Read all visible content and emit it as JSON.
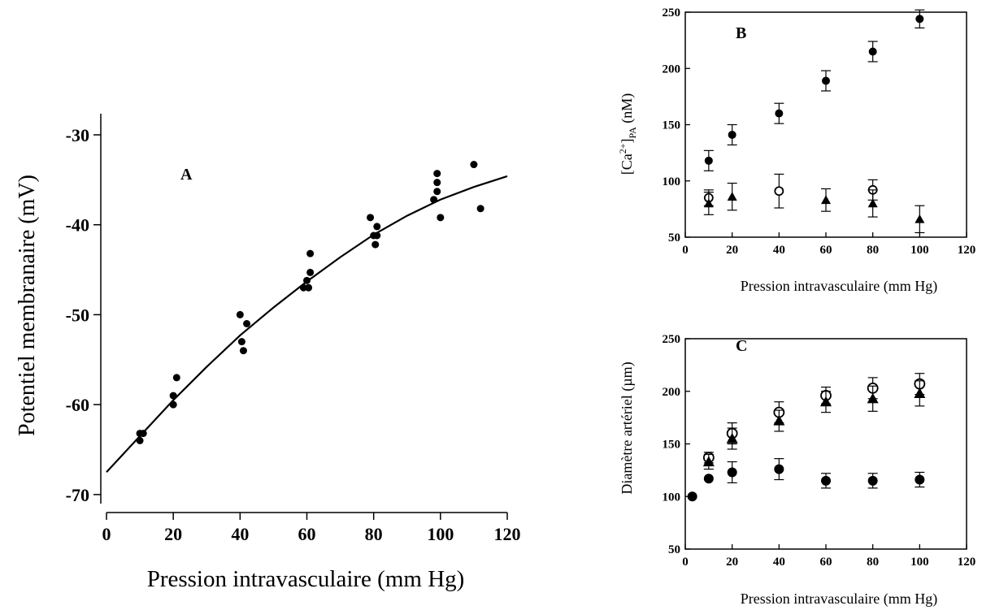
{
  "chart_data": [
    {
      "panel": "A",
      "type": "scatter",
      "panel_label": "A",
      "xlabel": "Pression intravasculaire (mm Hg)",
      "ylabel": "Potentiel membranaire (mV)",
      "xlim": [
        0,
        120
      ],
      "ylim": [
        -72,
        -30
      ],
      "xticks": [
        0,
        20,
        40,
        60,
        80,
        100,
        120
      ],
      "yticks": [
        -70,
        -60,
        -50,
        -40,
        -30
      ],
      "grid": false,
      "series": [
        {
          "marker": "filled-circle",
          "points": [
            [
              10,
              -64
            ],
            [
              10,
              -63.2
            ],
            [
              11,
              -63.2
            ],
            [
              20,
              -60
            ],
            [
              20,
              -59
            ],
            [
              21,
              -57
            ],
            [
              40,
              -50
            ],
            [
              40.5,
              -53
            ],
            [
              41,
              -54
            ],
            [
              42,
              -51
            ],
            [
              59,
              -47
            ],
            [
              60,
              -46.2
            ],
            [
              60.5,
              -47
            ],
            [
              61,
              -45.3
            ],
            [
              61,
              -43.2
            ],
            [
              79,
              -39.2
            ],
            [
              80,
              -41.2
            ],
            [
              80.5,
              -42.2
            ],
            [
              81,
              -41.2
            ],
            [
              81,
              -40.2
            ],
            [
              98,
              -37.2
            ],
            [
              99,
              -34.3
            ],
            [
              99,
              -35.3
            ],
            [
              99,
              -36.3
            ],
            [
              100,
              -39.2
            ],
            [
              110,
              -33.3
            ],
            [
              112,
              -38.2
            ]
          ]
        }
      ],
      "fit_curve": {
        "x": [
          0,
          10,
          20,
          30,
          40,
          50,
          60,
          70,
          80,
          90,
          100,
          110,
          120
        ],
        "y": [
          -67.5,
          -63.5,
          -59.5,
          -55.8,
          -52.3,
          -49.2,
          -46.3,
          -43.6,
          -41.1,
          -39.0,
          -37.2,
          -35.8,
          -34.6
        ]
      }
    },
    {
      "panel": "B",
      "type": "scatter",
      "panel_label": "B",
      "xlabel": "Pression intravasculaire (mm Hg)",
      "ylabel": "[Ca2+]PA (nM)",
      "ylabel_parts": {
        "pre": "[Ca",
        "sup": "2+",
        "mid": "]",
        "sub": "PA",
        "post": " (nM)"
      },
      "xlim": [
        0,
        120
      ],
      "ylim": [
        50,
        250
      ],
      "xticks": [
        0,
        20,
        40,
        60,
        80,
        100,
        120
      ],
      "yticks": [
        50,
        100,
        150,
        200,
        250
      ],
      "grid": false,
      "series": [
        {
          "marker": "filled-circle",
          "x": [
            10,
            20,
            40,
            60,
            80,
            100
          ],
          "y": [
            118,
            141,
            160,
            189,
            215,
            244
          ],
          "err": [
            9,
            9,
            9,
            9,
            9,
            8
          ]
        },
        {
          "marker": "open-circle",
          "x": [
            10,
            40,
            80
          ],
          "y": [
            85,
            91,
            92
          ],
          "err": [
            7,
            15,
            9
          ]
        },
        {
          "marker": "filled-triangle",
          "x": [
            10,
            20,
            60,
            80,
            100
          ],
          "y": [
            80,
            86,
            83,
            80,
            66
          ],
          "err": [
            10,
            12,
            10,
            12,
            12
          ]
        }
      ]
    },
    {
      "panel": "C",
      "type": "scatter",
      "panel_label": "C",
      "xlabel": "Pression intravasculaire (mm Hg)",
      "ylabel": "Diamètre artériel (µm)",
      "xlim": [
        0,
        120
      ],
      "ylim": [
        50,
        250
      ],
      "xticks": [
        0,
        20,
        40,
        60,
        80,
        100,
        120
      ],
      "yticks": [
        50,
        100,
        150,
        200,
        250
      ],
      "grid": false,
      "series": [
        {
          "marker": "filled-circle",
          "x": [
            3,
            10,
            20,
            40,
            60,
            80,
            100
          ],
          "y": [
            100,
            117,
            123,
            126,
            115,
            115,
            116
          ],
          "err": [
            0,
            0,
            10,
            10,
            7,
            7,
            7
          ]
        },
        {
          "marker": "open-circle",
          "x": [
            10,
            20,
            40,
            60,
            80,
            100
          ],
          "y": [
            137,
            160,
            180,
            196,
            203,
            207
          ],
          "err": [
            5,
            10,
            10,
            8,
            10,
            10
          ]
        },
        {
          "marker": "filled-triangle",
          "x": [
            10,
            20,
            40,
            60,
            80,
            100
          ],
          "y": [
            133,
            155,
            172,
            190,
            193,
            198
          ],
          "err": [
            7,
            10,
            10,
            10,
            12,
            12
          ]
        }
      ]
    }
  ]
}
